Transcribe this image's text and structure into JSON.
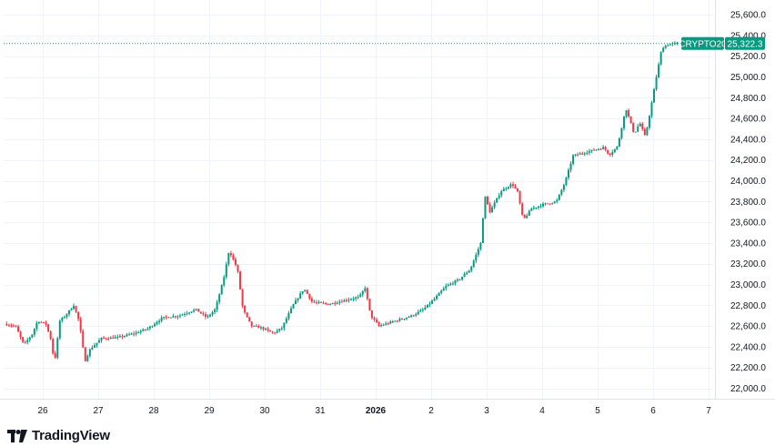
{
  "chart_data": {
    "type": "candlestick",
    "symbol": "CRYPTO20",
    "last_price": "25,322.3",
    "last_value": 25322.3,
    "up_color": "#089981",
    "down_color": "#f23645",
    "ylim": [
      21800,
      25700
    ],
    "y_ticks": [
      {
        "value": 22000,
        "label": "22,000.0"
      },
      {
        "value": 22200,
        "label": "22,200.0"
      },
      {
        "value": 22400,
        "label": "22,400.0"
      },
      {
        "value": 22600,
        "label": "22,600.0"
      },
      {
        "value": 22800,
        "label": "22,800.0"
      },
      {
        "value": 23000,
        "label": "23,000.0"
      },
      {
        "value": 23200,
        "label": "23,200.0"
      },
      {
        "value": 23400,
        "label": "23,400.0"
      },
      {
        "value": 23600,
        "label": "23,600.0"
      },
      {
        "value": 23800,
        "label": "23,800.0"
      },
      {
        "value": 24000,
        "label": "24,000.0"
      },
      {
        "value": 24200,
        "label": "24,200.0"
      },
      {
        "value": 24400,
        "label": "24,400.0"
      },
      {
        "value": 24600,
        "label": "24,600.0"
      },
      {
        "value": 24800,
        "label": "24,800.0"
      },
      {
        "value": 25000,
        "label": "25,000.0"
      },
      {
        "value": 25200,
        "label": "25,200.0"
      },
      {
        "value": 25400,
        "label": "25,400.0"
      },
      {
        "value": 25600,
        "label": "25,600.0"
      }
    ],
    "x_ticks": [
      {
        "day": 0,
        "label": "26",
        "bold": false
      },
      {
        "day": 1,
        "label": "27",
        "bold": false
      },
      {
        "day": 2,
        "label": "28",
        "bold": false
      },
      {
        "day": 3,
        "label": "29",
        "bold": false
      },
      {
        "day": 4,
        "label": "30",
        "bold": false
      },
      {
        "day": 5,
        "label": "31",
        "bold": false
      },
      {
        "day": 6,
        "label": "2026",
        "bold": true
      },
      {
        "day": 7,
        "label": "2",
        "bold": false
      },
      {
        "day": 8,
        "label": "3",
        "bold": false
      },
      {
        "day": 9,
        "label": "4",
        "bold": false
      },
      {
        "day": 10,
        "label": "5",
        "bold": false
      },
      {
        "day": 11,
        "label": "6",
        "bold": false
      },
      {
        "day": 12,
        "label": "7",
        "bold": false
      }
    ],
    "xlim_days": [
      -0.65,
      12.3
    ],
    "key_points": [
      [
        -0.65,
        22620
      ],
      [
        -0.45,
        22600
      ],
      [
        -0.3,
        22420
      ],
      [
        -0.15,
        22520
      ],
      [
        -0.05,
        22650
      ],
      [
        0.1,
        22620
      ],
      [
        0.2,
        22450
      ],
      [
        0.25,
        22230
      ],
      [
        0.35,
        22650
      ],
      [
        0.45,
        22700
      ],
      [
        0.6,
        22800
      ],
      [
        0.7,
        22640
      ],
      [
        0.8,
        22260
      ],
      [
        0.9,
        22380
      ],
      [
        1.1,
        22480
      ],
      [
        1.4,
        22490
      ],
      [
        1.7,
        22530
      ],
      [
        1.95,
        22580
      ],
      [
        2.2,
        22680
      ],
      [
        2.5,
        22700
      ],
      [
        2.8,
        22760
      ],
      [
        3.0,
        22680
      ],
      [
        3.15,
        22760
      ],
      [
        3.3,
        23050
      ],
      [
        3.4,
        23330
      ],
      [
        3.55,
        23150
      ],
      [
        3.65,
        22760
      ],
      [
        3.8,
        22600
      ],
      [
        4.0,
        22580
      ],
      [
        4.2,
        22530
      ],
      [
        4.35,
        22580
      ],
      [
        4.55,
        22800
      ],
      [
        4.75,
        22960
      ],
      [
        4.9,
        22830
      ],
      [
        5.2,
        22810
      ],
      [
        5.5,
        22850
      ],
      [
        5.75,
        22880
      ],
      [
        5.85,
        22970
      ],
      [
        5.95,
        22700
      ],
      [
        6.1,
        22600
      ],
      [
        6.4,
        22650
      ],
      [
        6.7,
        22700
      ],
      [
        6.9,
        22760
      ],
      [
        7.1,
        22860
      ],
      [
        7.3,
        22980
      ],
      [
        7.55,
        23050
      ],
      [
        7.75,
        23150
      ],
      [
        7.95,
        23420
      ],
      [
        8.0,
        23870
      ],
      [
        8.1,
        23700
      ],
      [
        8.3,
        23900
      ],
      [
        8.5,
        23970
      ],
      [
        8.6,
        23890
      ],
      [
        8.7,
        23620
      ],
      [
        8.85,
        23730
      ],
      [
        9.05,
        23770
      ],
      [
        9.3,
        23800
      ],
      [
        9.45,
        23980
      ],
      [
        9.6,
        24240
      ],
      [
        9.8,
        24270
      ],
      [
        10.0,
        24300
      ],
      [
        10.15,
        24320
      ],
      [
        10.25,
        24250
      ],
      [
        10.4,
        24330
      ],
      [
        10.55,
        24700
      ],
      [
        10.7,
        24450
      ],
      [
        10.8,
        24560
      ],
      [
        10.9,
        24420
      ],
      [
        11.0,
        24700
      ],
      [
        11.1,
        25000
      ],
      [
        11.2,
        25280
      ],
      [
        11.3,
        25310
      ],
      [
        11.4,
        25320
      ],
      [
        11.45,
        25322.3
      ]
    ]
  }
}
